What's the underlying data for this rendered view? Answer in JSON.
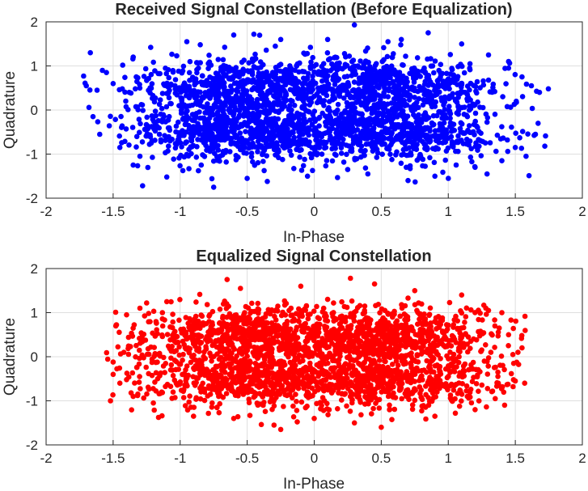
{
  "chart_data": [
    {
      "type": "scatter",
      "title": "Received Signal Constellation (Before Equalization)",
      "xlabel": "In-Phase",
      "ylabel": "Quadrature",
      "xlim": [
        -2,
        2
      ],
      "ylim": [
        -2,
        2
      ],
      "xticks": [
        "-2",
        "-1.5",
        "-1",
        "-0.5",
        "0",
        "0.5",
        "1",
        "1.5",
        "2"
      ],
      "yticks": [
        "-2",
        "-1",
        "0",
        "1",
        "2"
      ],
      "grid": true,
      "color": "#0000ff",
      "cloud_x_extent": [
        -1.75,
        1.75
      ],
      "cloud_y_extent": [
        -1.75,
        1.9
      ],
      "points": [
        [
          -1.72,
          0.77
        ],
        [
          -1.7,
          0.55
        ],
        [
          -1.67,
          1.3
        ],
        [
          -1.65,
          -0.15
        ],
        [
          -1.62,
          0.45
        ],
        [
          -1.6,
          -0.55
        ],
        [
          -1.58,
          0.9
        ],
        [
          -1.55,
          0.85
        ],
        [
          -1.5,
          0.6
        ],
        [
          -1.45,
          -0.85
        ],
        [
          -1.38,
          0.4
        ],
        [
          -1.35,
          1.2
        ],
        [
          -1.3,
          -1.05
        ],
        [
          -1.28,
          -1.72
        ],
        [
          -1.22,
          1.42
        ],
        [
          -1.1,
          -1.52
        ],
        [
          -0.95,
          1.55
        ],
        [
          -0.75,
          -1.75
        ],
        [
          -0.6,
          1.7
        ],
        [
          -0.5,
          -1.55
        ],
        [
          -0.45,
          1.72
        ],
        [
          -0.25,
          1.6
        ],
        [
          -0.05,
          -1.5
        ],
        [
          0.1,
          1.6
        ],
        [
          0.25,
          -1.35
        ],
        [
          0.3,
          1.93
        ],
        [
          0.4,
          -1.45
        ],
        [
          0.65,
          1.6
        ],
        [
          0.85,
          1.75
        ],
        [
          0.9,
          -1.5
        ],
        [
          1.1,
          1.5
        ],
        [
          1.2,
          -1.3
        ],
        [
          1.3,
          1.25
        ],
        [
          1.4,
          -1.15
        ],
        [
          1.45,
          0.95
        ],
        [
          1.5,
          -0.85
        ],
        [
          1.55,
          0.75
        ],
        [
          1.58,
          -1.05
        ],
        [
          1.62,
          0.55
        ],
        [
          1.65,
          -0.55
        ],
        [
          1.67,
          -0.3
        ],
        [
          1.68,
          0.4
        ],
        [
          1.72,
          -0.82
        ],
        [
          1.45,
          1.1
        ],
        [
          -1.35,
          -1.25
        ],
        [
          -0.35,
          -1.62
        ],
        [
          0.55,
          1.55
        ],
        [
          0.7,
          -1.6
        ],
        [
          -0.85,
          1.48
        ],
        [
          1.0,
          -1.55
        ]
      ]
    },
    {
      "type": "scatter",
      "title": "Equalized Signal Constellation",
      "xlabel": "In-Phase",
      "ylabel": "Quadrature",
      "xlim": [
        -2,
        2
      ],
      "ylim": [
        -2,
        2
      ],
      "xticks": [
        "-2",
        "-1.5",
        "-1",
        "-0.5",
        "0",
        "0.5",
        "1",
        "1.5",
        "2"
      ],
      "yticks": [
        "-2",
        "-1",
        "0",
        "1",
        "2"
      ],
      "grid": true,
      "color": "#ff0000",
      "cloud_x_extent": [
        -1.55,
        1.6
      ],
      "cloud_y_extent": [
        -1.65,
        1.8
      ],
      "points": [
        [
          -1.52,
          -1.0
        ],
        [
          -1.5,
          -0.4
        ],
        [
          -1.48,
          0.7
        ],
        [
          -1.45,
          -0.6
        ],
        [
          -1.4,
          0.95
        ],
        [
          -1.35,
          -0.9
        ],
        [
          -1.3,
          1.1
        ],
        [
          -1.25,
          1.22
        ],
        [
          -1.2,
          -1.05
        ],
        [
          -1.1,
          1.25
        ],
        [
          -0.9,
          -1.35
        ],
        [
          -0.65,
          1.75
        ],
        [
          -0.6,
          -1.4
        ],
        [
          -0.55,
          1.55
        ],
        [
          -0.3,
          -1.55
        ],
        [
          -0.25,
          -1.65
        ],
        [
          -0.1,
          1.6
        ],
        [
          0.0,
          -1.4
        ],
        [
          0.1,
          1.3
        ],
        [
          0.27,
          1.78
        ],
        [
          0.3,
          -1.5
        ],
        [
          0.45,
          1.65
        ],
        [
          0.5,
          -1.6
        ],
        [
          0.75,
          1.5
        ],
        [
          0.9,
          -1.35
        ],
        [
          1.1,
          1.4
        ],
        [
          1.2,
          -1.2
        ],
        [
          1.3,
          1.05
        ],
        [
          1.35,
          -0.95
        ],
        [
          1.4,
          1.0
        ],
        [
          1.42,
          -1.1
        ],
        [
          1.45,
          0.5
        ],
        [
          1.5,
          -0.55
        ],
        [
          1.52,
          0.1
        ],
        [
          1.55,
          0.2
        ],
        [
          1.57,
          -0.6
        ],
        [
          1.38,
          0.65
        ],
        [
          1.37,
          -0.35
        ],
        [
          -1.42,
          0.1
        ],
        [
          1.28,
          1.1
        ]
      ]
    }
  ]
}
